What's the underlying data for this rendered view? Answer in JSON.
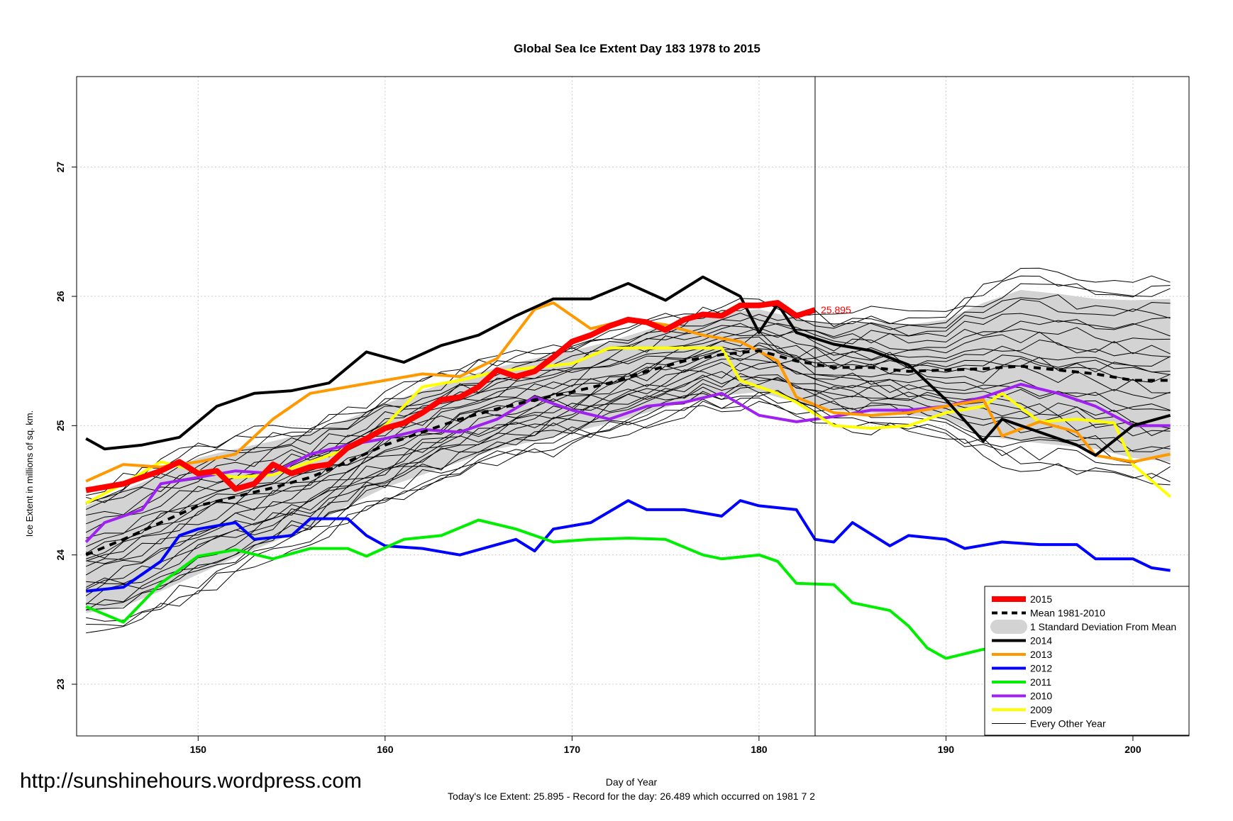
{
  "chart_data": {
    "type": "line",
    "title": "Global Sea Ice Extent Day 183 1978 to 2015",
    "xlabel": "Day of Year",
    "ylabel": "Ice Extent in millions of sq. km.",
    "xlim": [
      143.5,
      203
    ],
    "ylim": [
      22.6,
      27.7
    ],
    "x_ticks": [
      150,
      160,
      170,
      180,
      190,
      200
    ],
    "y_ticks": [
      23,
      24,
      25,
      26,
      27
    ],
    "grid": true,
    "current_day": 183,
    "annotation": "25.895",
    "legend_position": "bottom-right",
    "legend": [
      {
        "label": "2015",
        "color": "#ff0000",
        "style": "thick"
      },
      {
        "label": "Mean 1981-2010",
        "color": "#000000",
        "style": "dashed"
      },
      {
        "label": "1 Standard Deviation From Mean",
        "color": "#d3d3d3",
        "style": "band"
      },
      {
        "label": "2014",
        "color": "#000000",
        "style": "solid"
      },
      {
        "label": "2013",
        "color": "#ff9900",
        "style": "solid"
      },
      {
        "label": "2012",
        "color": "#0000ff",
        "style": "solid"
      },
      {
        "label": "2011",
        "color": "#00ee00",
        "style": "solid"
      },
      {
        "label": "2010",
        "color": "#a020f0",
        "style": "solid"
      },
      {
        "label": "2009",
        "color": "#ffff00",
        "style": "solid"
      },
      {
        "label": "Every Other Year",
        "color": "#000000",
        "style": "thin"
      }
    ],
    "series": [
      {
        "name": "2015",
        "color": "#ff0000",
        "x": [
          144,
          146,
          148,
          149,
          150,
          151,
          152,
          153,
          154,
          155,
          156,
          157,
          158,
          159,
          160,
          161,
          162,
          163,
          164,
          165,
          166,
          167,
          168,
          169,
          170,
          171,
          172,
          173,
          174,
          175,
          176,
          177,
          178,
          179,
          180,
          181,
          182,
          183
        ],
        "y": [
          24.5,
          24.55,
          24.65,
          24.72,
          24.63,
          24.65,
          24.51,
          24.55,
          24.7,
          24.63,
          24.68,
          24.7,
          24.83,
          24.9,
          24.98,
          25.02,
          25.1,
          25.2,
          25.22,
          25.3,
          25.43,
          25.38,
          25.42,
          25.53,
          25.65,
          25.7,
          25.77,
          25.82,
          25.8,
          25.74,
          25.82,
          25.86,
          25.85,
          25.93,
          25.93,
          25.95,
          25.85,
          25.895
        ]
      },
      {
        "name": "Mean 1981-2010",
        "color": "#000000",
        "x": [
          144,
          146,
          148,
          150,
          152,
          154,
          156,
          158,
          160,
          162,
          164,
          166,
          168,
          170,
          172,
          174,
          176,
          178,
          180,
          182,
          184,
          186,
          188,
          190,
          192,
          194,
          196,
          198,
          200,
          202
        ],
        "y": [
          24.0,
          24.12,
          24.25,
          24.38,
          24.45,
          24.52,
          24.6,
          24.72,
          24.85,
          24.95,
          25.05,
          25.13,
          25.2,
          25.26,
          25.33,
          25.42,
          25.5,
          25.55,
          25.58,
          25.5,
          25.45,
          25.45,
          25.42,
          25.43,
          25.44,
          25.46,
          25.43,
          25.4,
          25.35,
          25.35
        ]
      },
      {
        "name": "2014",
        "color": "#000000",
        "x": [
          144,
          145,
          147,
          149,
          151,
          153,
          155,
          157,
          159,
          161,
          163,
          165,
          167,
          169,
          171,
          173,
          175,
          177,
          179,
          180,
          181,
          182,
          184,
          186,
          188,
          190,
          192,
          193,
          195,
          197,
          198,
          200,
          202
        ],
        "y": [
          24.9,
          24.82,
          24.85,
          24.91,
          25.15,
          25.25,
          25.27,
          25.33,
          25.57,
          25.49,
          25.62,
          25.7,
          25.85,
          25.98,
          25.98,
          26.1,
          25.97,
          26.15,
          26.0,
          25.72,
          25.94,
          25.72,
          25.63,
          25.58,
          25.47,
          25.2,
          24.88,
          25.05,
          24.95,
          24.85,
          24.77,
          25.0,
          25.08
        ]
      },
      {
        "name": "2013",
        "color": "#ff9900",
        "x": [
          144,
          146,
          148,
          150,
          152,
          154,
          156,
          158,
          160,
          162,
          164,
          166,
          168,
          169,
          171,
          173,
          175,
          177,
          179,
          181,
          182,
          184,
          186,
          188,
          190,
          192,
          193,
          195,
          197,
          198,
          200,
          202
        ],
        "y": [
          24.57,
          24.7,
          24.68,
          24.72,
          24.78,
          25.05,
          25.25,
          25.3,
          25.35,
          25.4,
          25.38,
          25.52,
          25.9,
          25.95,
          25.75,
          25.82,
          25.78,
          25.7,
          25.65,
          25.5,
          25.22,
          25.1,
          25.08,
          25.1,
          25.15,
          25.2,
          24.92,
          25.03,
          24.95,
          24.77,
          24.72,
          24.78
        ]
      },
      {
        "name": "2012",
        "color": "#0000ff",
        "x": [
          144,
          146,
          148,
          149,
          150,
          152,
          153,
          155,
          156,
          158,
          159,
          160,
          162,
          164,
          166,
          167,
          168,
          169,
          171,
          173,
          174,
          176,
          178,
          179,
          180,
          182,
          183,
          184,
          185,
          187,
          188,
          190,
          191,
          193,
          195,
          197,
          198,
          200,
          201,
          202
        ],
        "y": [
          23.72,
          23.75,
          23.95,
          24.15,
          24.2,
          24.25,
          24.12,
          24.15,
          24.28,
          24.28,
          24.15,
          24.07,
          24.05,
          24.0,
          24.08,
          24.12,
          24.03,
          24.2,
          24.25,
          24.42,
          24.35,
          24.35,
          24.3,
          24.42,
          24.38,
          24.35,
          24.12,
          24.1,
          24.25,
          24.07,
          24.15,
          24.12,
          24.05,
          24.1,
          24.08,
          24.08,
          23.97,
          23.97,
          23.9,
          23.88
        ]
      },
      {
        "name": "2011",
        "color": "#00ee00",
        "x": [
          144,
          146,
          148,
          150,
          152,
          154,
          156,
          158,
          159,
          161,
          163,
          165,
          167,
          169,
          171,
          173,
          175,
          177,
          178,
          180,
          181,
          182,
          184,
          185,
          187,
          188,
          189,
          190,
          192,
          194,
          196,
          198,
          200,
          202
        ],
        "y": [
          23.6,
          23.48,
          23.78,
          23.99,
          24.04,
          23.97,
          24.05,
          24.05,
          23.99,
          24.12,
          24.15,
          24.27,
          24.2,
          24.1,
          24.12,
          24.13,
          24.12,
          24.0,
          23.97,
          24.0,
          23.95,
          23.78,
          23.77,
          23.63,
          23.57,
          23.45,
          23.28,
          23.2,
          23.27,
          23.2,
          23.17,
          23.35,
          23.38,
          23.48
        ]
      },
      {
        "name": "2010",
        "color": "#a020f0",
        "x": [
          144,
          145,
          147,
          148,
          150,
          152,
          154,
          156,
          158,
          160,
          162,
          164,
          166,
          168,
          170,
          172,
          174,
          176,
          178,
          180,
          182,
          184,
          186,
          188,
          190,
          192,
          194,
          196,
          198,
          200,
          202
        ],
        "y": [
          24.1,
          24.25,
          24.35,
          24.55,
          24.6,
          24.65,
          24.63,
          24.78,
          24.85,
          24.9,
          24.97,
          24.95,
          25.05,
          25.22,
          25.12,
          25.05,
          25.15,
          25.18,
          25.25,
          25.08,
          25.03,
          25.07,
          25.12,
          25.12,
          25.15,
          25.22,
          25.32,
          25.25,
          25.15,
          25.0,
          25.0
        ]
      },
      {
        "name": "2009",
        "color": "#ffff00",
        "x": [
          144,
          146,
          148,
          150,
          152,
          154,
          156,
          158,
          160,
          162,
          164,
          166,
          168,
          170,
          172,
          174,
          176,
          178,
          179,
          181,
          182,
          184,
          186,
          188,
          190,
          192,
          193,
          195,
          197,
          199,
          200,
          202
        ],
        "y": [
          24.4,
          24.55,
          24.72,
          24.65,
          24.6,
          24.62,
          24.72,
          24.82,
          25.0,
          25.3,
          25.35,
          25.42,
          25.45,
          25.48,
          25.6,
          25.6,
          25.6,
          25.6,
          25.35,
          25.25,
          25.18,
          25.0,
          24.98,
          25.0,
          25.1,
          25.15,
          25.25,
          25.03,
          25.05,
          25.02,
          24.7,
          24.45
        ]
      }
    ],
    "std_band": {
      "x": [
        144,
        146,
        148,
        150,
        152,
        154,
        156,
        158,
        160,
        162,
        164,
        166,
        168,
        170,
        172,
        174,
        176,
        178,
        180,
        182,
        184,
        186,
        188,
        190,
        192,
        194,
        196,
        198,
        200,
        202
      ],
      "upper": [
        24.38,
        24.5,
        24.62,
        24.75,
        24.82,
        24.88,
        24.95,
        25.05,
        25.17,
        25.27,
        25.37,
        25.45,
        25.52,
        25.58,
        25.65,
        25.74,
        25.82,
        25.87,
        25.9,
        25.83,
        25.78,
        25.8,
        25.78,
        25.82,
        25.95,
        26.05,
        26.02,
        25.98,
        25.97,
        25.98
      ],
      "lower": [
        23.55,
        23.6,
        23.72,
        23.85,
        23.98,
        24.1,
        24.22,
        24.38,
        24.52,
        24.62,
        24.72,
        24.82,
        24.88,
        24.95,
        25.02,
        25.1,
        25.18,
        25.23,
        25.26,
        25.18,
        25.12,
        25.1,
        25.08,
        25.05,
        24.92,
        24.88,
        24.85,
        24.82,
        24.75,
        24.72
      ]
    }
  },
  "url": "http://sunshinehours.wordpress.com",
  "footer": "Today's Ice Extent: 25.895  - Record for the day: 26.489 which occurred on 1981 7 2"
}
